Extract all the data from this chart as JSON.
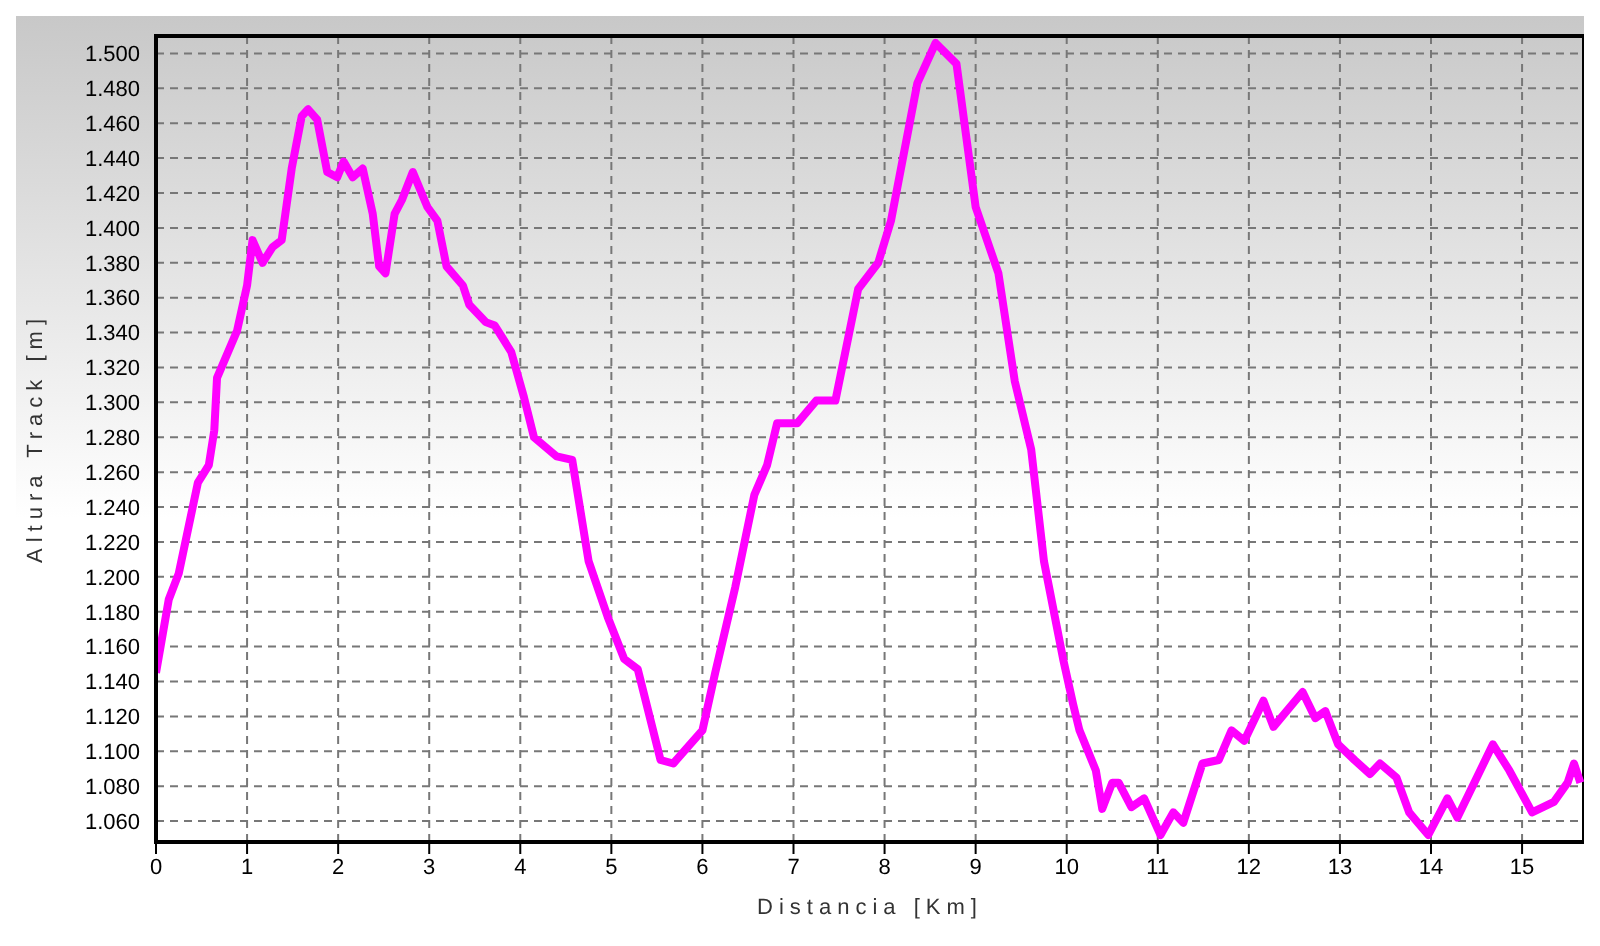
{
  "chart_data": {
    "type": "line",
    "xlabel": "Distancia [Km]",
    "ylabel": "Altura Track [m]",
    "x": [
      0,
      0.14,
      0.25,
      0.46,
      0.58,
      0.64,
      0.67,
      0.89,
      1.0,
      1.06,
      1.17,
      1.28,
      1.38,
      1.49,
      1.6,
      1.67,
      1.77,
      1.88,
      1.99,
      2.06,
      2.16,
      2.27,
      2.38,
      2.45,
      2.52,
      2.62,
      2.7,
      2.82,
      2.98,
      3.09,
      3.19,
      3.37,
      3.44,
      3.62,
      3.72,
      3.9,
      4.04,
      4.15,
      4.4,
      4.57,
      4.75,
      4.96,
      5.14,
      5.29,
      5.54,
      5.68,
      6.0,
      6.14,
      6.36,
      6.57,
      6.71,
      6.82,
      7.04,
      7.25,
      7.46,
      7.71,
      7.93,
      8.07,
      8.18,
      8.36,
      8.56,
      8.79,
      9.0,
      9.25,
      9.43,
      9.61,
      9.75,
      9.96,
      10.07,
      10.14,
      10.32,
      10.39,
      10.5,
      10.57,
      10.71,
      10.85,
      11.03,
      11.17,
      11.28,
      11.49,
      11.67,
      11.81,
      11.95,
      12.16,
      12.27,
      12.59,
      12.73,
      12.84,
      12.98,
      13.16,
      13.33,
      13.44,
      13.62,
      13.76,
      13.97,
      14.18,
      14.29,
      14.68,
      14.86,
      15.11,
      15.35,
      15.5,
      15.57,
      15.64
    ],
    "series": [
      {
        "color": "#ff00ff",
        "values": [
          1145,
          1187,
          1202,
          1254,
          1264,
          1284,
          1314,
          1341,
          1367,
          1393,
          1380,
          1389,
          1393,
          1434,
          1464,
          1468,
          1462,
          1432,
          1429,
          1438,
          1429,
          1434,
          1408,
          1378,
          1374,
          1408,
          1416,
          1432,
          1412,
          1404,
          1378,
          1367,
          1356,
          1346,
          1344,
          1329,
          1303,
          1280,
          1269,
          1267,
          1209,
          1177,
          1153,
          1147,
          1095,
          1093,
          1112,
          1145,
          1194,
          1247,
          1264,
          1288,
          1288,
          1301,
          1301,
          1365,
          1380,
          1404,
          1434,
          1483,
          1506,
          1494,
          1412,
          1374,
          1312,
          1273,
          1209,
          1153,
          1127,
          1112,
          1089,
          1067,
          1082,
          1082,
          1068,
          1073,
          1052,
          1065,
          1059,
          1093,
          1095,
          1112,
          1106,
          1129,
          1114,
          1134,
          1119,
          1123,
          1104,
          1095,
          1087,
          1093,
          1085,
          1065,
          1052,
          1073,
          1062,
          1104,
          1089,
          1065,
          1071,
          1082,
          1093,
          1082
        ]
      }
    ],
    "xlim": [
      0,
      15.68
    ],
    "xticks": [
      0,
      1,
      2,
      3,
      4,
      5,
      6,
      7,
      8,
      9,
      10,
      11,
      12,
      13,
      14,
      15
    ],
    "ylim": [
      1048,
      1510
    ],
    "yticks": [
      {
        "value": 1060,
        "label": "1.060"
      },
      {
        "value": 1080,
        "label": "1.080"
      },
      {
        "value": 1100,
        "label": "1.100"
      },
      {
        "value": 1120,
        "label": "1.120"
      },
      {
        "value": 1140,
        "label": "1.140"
      },
      {
        "value": 1160,
        "label": "1.160"
      },
      {
        "value": 1180,
        "label": "1.180"
      },
      {
        "value": 1200,
        "label": "1.200"
      },
      {
        "value": 1220,
        "label": "1.220"
      },
      {
        "value": 1240,
        "label": "1.240"
      },
      {
        "value": 1260,
        "label": "1.260"
      },
      {
        "value": 1280,
        "label": "1.280"
      },
      {
        "value": 1300,
        "label": "1.300"
      },
      {
        "value": 1320,
        "label": "1.320"
      },
      {
        "value": 1340,
        "label": "1.340"
      },
      {
        "value": 1360,
        "label": "1.360"
      },
      {
        "value": 1380,
        "label": "1.380"
      },
      {
        "value": 1400,
        "label": "1.400"
      },
      {
        "value": 1420,
        "label": "1.420"
      },
      {
        "value": 1440,
        "label": "1.440"
      },
      {
        "value": 1460,
        "label": "1.460"
      },
      {
        "value": 1480,
        "label": "1.480"
      },
      {
        "value": 1500,
        "label": "1.500"
      }
    ],
    "grid": true,
    "marker": "none",
    "line_style": "solid",
    "legend": false
  }
}
